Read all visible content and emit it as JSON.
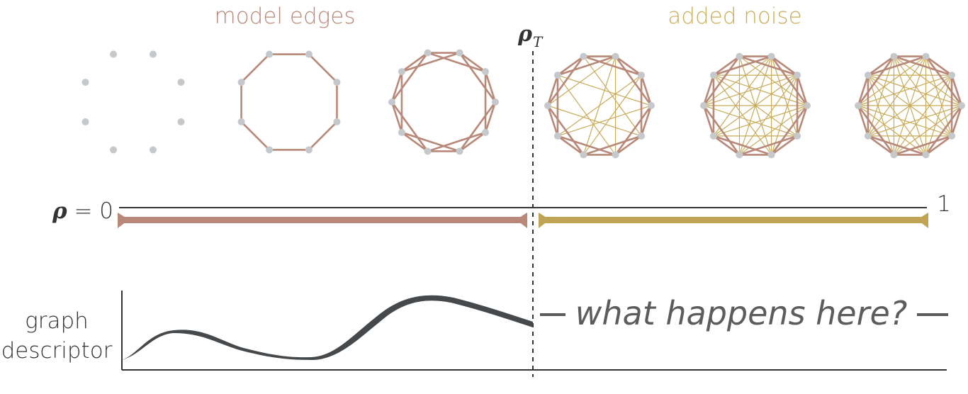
{
  "labels": {
    "model_edges": "model edges",
    "added_noise": "added noise",
    "rho_symbol": "ρ",
    "rho_t_subscript": "T",
    "rho_zero": "ρ = 0",
    "rho_one": "1",
    "graph_descriptor_line1": "graph",
    "graph_descriptor_line2": "descriptor",
    "question": "what happens here?"
  },
  "colors": {
    "model_edge": "#b88878",
    "noise_edge": "#c8aa58",
    "noise_bar": "#c0a455",
    "model_bar": "#b8887a",
    "node": "#c6c9cc",
    "axis": "#333333",
    "curve": "#46494b",
    "model_label": "#b8887a",
    "noise_label": "#c9ad5a",
    "question_text": "#5a5c5e"
  },
  "graphs": [
    {
      "name": "graph-empty",
      "nodes": 8,
      "model_ring_offsets": [],
      "noise_pairs": []
    },
    {
      "name": "graph-ring-k1",
      "nodes": 8,
      "model_ring_offsets": [
        1
      ],
      "noise_pairs": []
    },
    {
      "name": "graph-ring-k2",
      "nodes": 10,
      "model_ring_offsets": [
        1,
        2
      ],
      "noise_pairs": []
    },
    {
      "name": "graph-noise-low",
      "nodes": 10,
      "model_ring_offsets": [
        1,
        2
      ],
      "noise_pairs": [
        [
          0,
          4
        ],
        [
          0,
          5
        ],
        [
          0,
          7
        ],
        [
          1,
          5
        ],
        [
          1,
          6
        ],
        [
          2,
          6
        ],
        [
          2,
          8
        ],
        [
          3,
          7
        ],
        [
          3,
          9
        ],
        [
          4,
          8
        ]
      ]
    },
    {
      "name": "graph-noise-mid",
      "nodes": 10,
      "model_ring_offsets": [
        1,
        2
      ],
      "noise_pairs": [
        [
          0,
          3
        ],
        [
          0,
          4
        ],
        [
          0,
          5
        ],
        [
          0,
          6
        ],
        [
          0,
          7
        ],
        [
          1,
          4
        ],
        [
          1,
          5
        ],
        [
          1,
          6
        ],
        [
          1,
          7
        ],
        [
          1,
          8
        ],
        [
          2,
          5
        ],
        [
          2,
          6
        ],
        [
          2,
          7
        ],
        [
          2,
          8
        ],
        [
          2,
          9
        ],
        [
          3,
          6
        ],
        [
          3,
          7
        ],
        [
          3,
          8
        ],
        [
          4,
          8
        ],
        [
          4,
          9
        ],
        [
          5,
          9
        ]
      ]
    },
    {
      "name": "graph-noise-high",
      "nodes": 10,
      "model_ring_offsets": [
        1,
        2
      ],
      "noise_pairs": [
        [
          0,
          3
        ],
        [
          0,
          4
        ],
        [
          0,
          5
        ],
        [
          0,
          6
        ],
        [
          0,
          7
        ],
        [
          1,
          4
        ],
        [
          1,
          5
        ],
        [
          1,
          6
        ],
        [
          1,
          7
        ],
        [
          1,
          8
        ],
        [
          2,
          5
        ],
        [
          2,
          6
        ],
        [
          2,
          7
        ],
        [
          2,
          8
        ],
        [
          2,
          9
        ],
        [
          3,
          6
        ],
        [
          3,
          7
        ],
        [
          3,
          8
        ],
        [
          3,
          9
        ],
        [
          4,
          7
        ],
        [
          4,
          8
        ],
        [
          4,
          9
        ],
        [
          5,
          8
        ],
        [
          5,
          9
        ],
        [
          6,
          9
        ]
      ]
    }
  ]
}
